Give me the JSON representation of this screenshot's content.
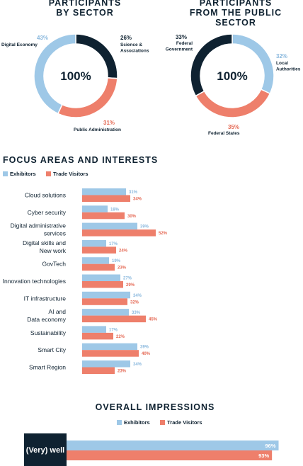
{
  "colors": {
    "dark": "#0f2231",
    "blue": "#9ec8e7",
    "red": "#ee7f6b",
    "blue_text": "#8bb9de",
    "red_text": "#e56a55"
  },
  "chart_data": [
    {
      "type": "pie",
      "title": "PARTICIPANTS\nBY SECTOR",
      "center_label": "100%",
      "slices": [
        {
          "label": "Science &\nAssociations",
          "pct_label": "26%",
          "value": 26,
          "color": "#0f2231"
        },
        {
          "label": "Public Administration",
          "pct_label": "31%",
          "value": 31,
          "color": "#ee7f6b"
        },
        {
          "label": "Digital Economy",
          "pct_label": "43%",
          "value": 43,
          "color": "#9ec8e7"
        }
      ]
    },
    {
      "type": "pie",
      "title": "PARTICIPANTS\nFROM THE PUBLIC SECTOR",
      "center_label": "100%",
      "slices": [
        {
          "label": "Local\nAuthorities",
          "pct_label": "32%",
          "value": 32,
          "color": "#9ec8e7"
        },
        {
          "label": "Federal States",
          "pct_label": "35%",
          "value": 35,
          "color": "#ee7f6b"
        },
        {
          "label": "Federal\nGovernment",
          "pct_label": "33%",
          "value": 33,
          "color": "#0f2231"
        }
      ]
    },
    {
      "type": "bar",
      "orientation": "horizontal",
      "title": "FOCUS AREAS AND INTERESTS",
      "categories": [
        "Cloud solutions",
        "Cyber security",
        "Digital administrative\nservices",
        "Digital skills and\nNew work",
        "GovTech",
        "Innovation technologies",
        "IT infrastructure",
        "AI and\nData economy",
        "Sustainability",
        "Smart City",
        "Smart Region"
      ],
      "series": [
        {
          "name": "Exhibitors",
          "color": "#9ec8e7",
          "values": [
            31,
            18,
            39,
            17,
            19,
            27,
            34,
            33,
            17,
            39,
            34
          ],
          "labels": [
            "31%",
            "18%",
            "39%",
            "17%",
            "19%",
            "27%",
            "34%",
            "33%",
            "17%",
            "39%",
            "34%"
          ]
        },
        {
          "name": "Trade Visitors",
          "color": "#ee7f6b",
          "values": [
            34,
            30,
            52,
            24,
            23,
            29,
            32,
            45,
            22,
            40,
            23
          ],
          "labels": [
            "34%",
            "30%",
            "52%",
            "24%",
            "23%",
            "29%",
            "32%",
            "45%",
            "22%",
            "40%",
            "23%"
          ]
        }
      ],
      "xlim": [
        0,
        100
      ]
    },
    {
      "type": "bar",
      "orientation": "horizontal",
      "title": "OVERALL IMPRESSIONS",
      "categories": [
        "(Very) well"
      ],
      "series": [
        {
          "name": "Exhibitors",
          "color": "#9ec8e7",
          "values": [
            96
          ],
          "labels": [
            "96%"
          ]
        },
        {
          "name": "Trade Visitors",
          "color": "#ee7f6b",
          "values": [
            93
          ],
          "labels": [
            "93%"
          ]
        }
      ],
      "xlim": [
        0,
        100
      ]
    }
  ]
}
